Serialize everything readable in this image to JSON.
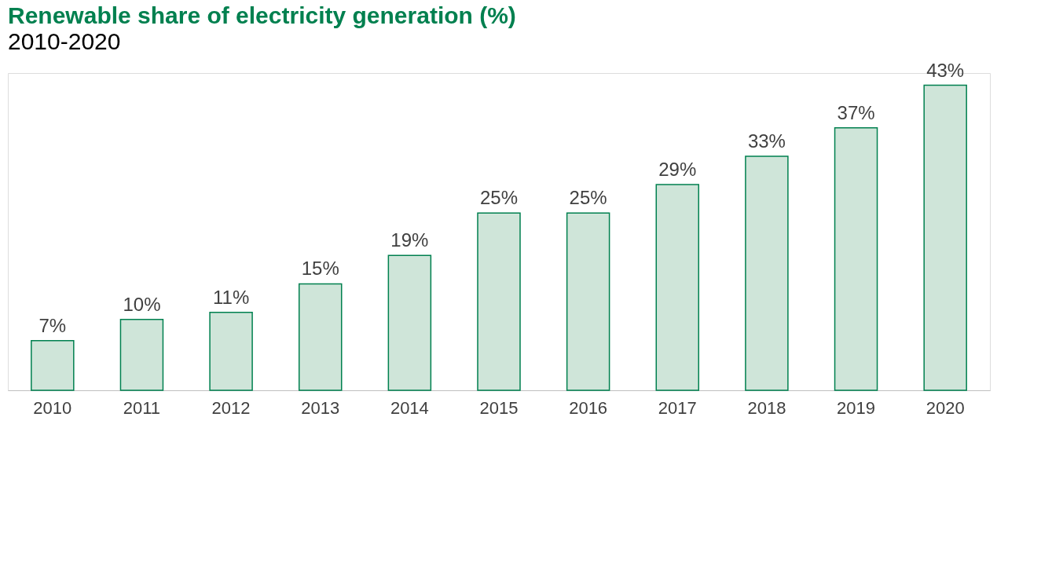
{
  "chart_data": {
    "type": "bar",
    "title": "Renewable share of electricity generation (%)",
    "subtitle": "2010-2020",
    "categories": [
      "2010",
      "2011",
      "2012",
      "2013",
      "2014",
      "2015",
      "2016",
      "2017",
      "2018",
      "2019",
      "2020"
    ],
    "values": [
      7,
      10,
      11,
      15,
      19,
      25,
      25,
      29,
      33,
      37,
      43
    ],
    "value_labels": [
      "7%",
      "10%",
      "11%",
      "15%",
      "19%",
      "25%",
      "25%",
      "29%",
      "33%",
      "37%",
      "43%"
    ],
    "color": "#00804f",
    "grid": false
  }
}
